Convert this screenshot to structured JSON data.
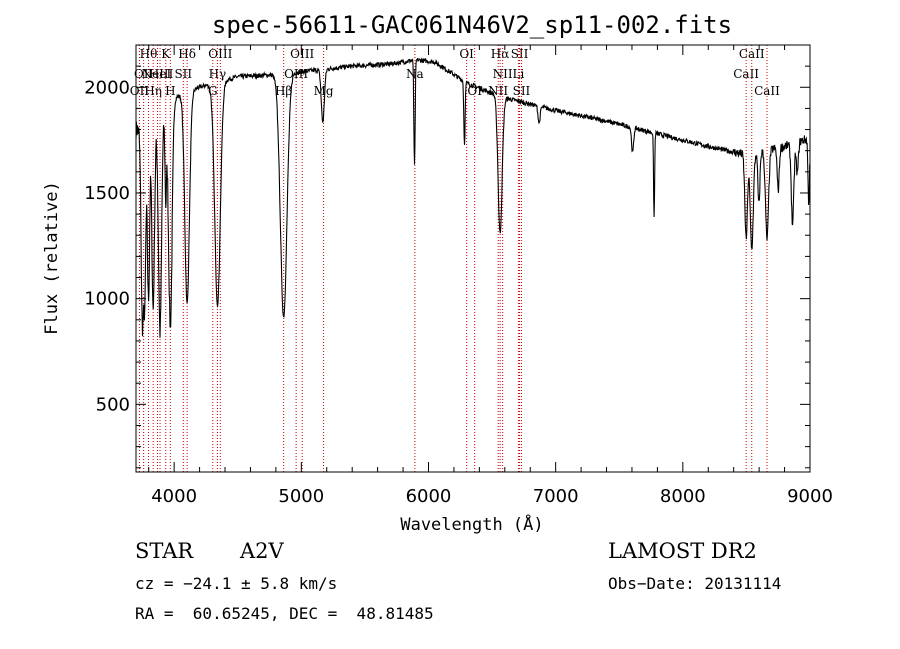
{
  "chart_data": {
    "type": "line",
    "title": "spec-56611-GAC061N46V2_sp11-002.fits",
    "xlabel": "Wavelength (Å)",
    "ylabel": "Flux (relative)",
    "xlim": [
      3700,
      9000
    ],
    "ylim": [
      180,
      2200
    ],
    "xticks": [
      4000,
      5000,
      6000,
      7000,
      8000,
      9000
    ],
    "yticks": [
      500,
      1000,
      1500,
      2000
    ],
    "line_color": "#000000",
    "marker_color": "#cc0000",
    "continuum": {
      "x": [
        3850,
        4000,
        4200,
        4500,
        4800,
        5100,
        5400,
        5700,
        5900,
        6050,
        6300,
        6600,
        6800,
        7000,
        7400,
        7800,
        8200,
        8500,
        8800,
        9000
      ],
      "y": [
        1800,
        1950,
        2000,
        2050,
        2060,
        2080,
        2100,
        2110,
        2130,
        2120,
        2020,
        1950,
        1920,
        1890,
        1840,
        1780,
        1720,
        1680,
        1720,
        1760
      ]
    },
    "absorption_features": [
      {
        "x": 3750,
        "depth": 900,
        "width": 10
      },
      {
        "x": 3770,
        "depth": 700,
        "width": 8
      },
      {
        "x": 3798,
        "depth": 800,
        "width": 9
      },
      {
        "x": 3835,
        "depth": 850,
        "width": 10
      },
      {
        "x": 3889,
        "depth": 1000,
        "width": 12
      },
      {
        "x": 3934,
        "depth": 400,
        "width": 6
      },
      {
        "x": 3970,
        "depth": 1050,
        "width": 14
      },
      {
        "x": 4102,
        "depth": 1000,
        "width": 18
      },
      {
        "x": 4341,
        "depth": 1050,
        "width": 22
      },
      {
        "x": 4861,
        "depth": 1150,
        "width": 26
      },
      {
        "x": 5169,
        "depth": 250,
        "width": 12
      },
      {
        "x": 5890,
        "depth": 500,
        "width": 5
      },
      {
        "x": 6283,
        "depth": 300,
        "width": 5
      },
      {
        "x": 6563,
        "depth": 650,
        "width": 16
      },
      {
        "x": 6870,
        "depth": 80,
        "width": 8
      },
      {
        "x": 7605,
        "depth": 120,
        "width": 8
      },
      {
        "x": 7774,
        "depth": 400,
        "width": 4
      },
      {
        "x": 8498,
        "depth": 400,
        "width": 10
      },
      {
        "x": 8542,
        "depth": 450,
        "width": 12
      },
      {
        "x": 8598,
        "depth": 250,
        "width": 8
      },
      {
        "x": 8662,
        "depth": 420,
        "width": 12
      },
      {
        "x": 8750,
        "depth": 200,
        "width": 8
      },
      {
        "x": 8863,
        "depth": 380,
        "width": 10
      },
      {
        "x": 8900,
        "depth": 150,
        "width": 8
      },
      {
        "x": 8990,
        "depth": 300,
        "width": 6
      }
    ],
    "line_markers": [
      {
        "x": 3727,
        "label": "OII",
        "row": 2
      },
      {
        "x": 3760,
        "label": "OII",
        "row": 1
      },
      {
        "x": 3798,
        "label": "Hθ",
        "row": 0
      },
      {
        "x": 3835,
        "label": "Hη",
        "row": 2
      },
      {
        "x": 3869,
        "label": "NeIII",
        "row": 1
      },
      {
        "x": 3889,
        "label": "HeI",
        "row": 1
      },
      {
        "x": 3934,
        "label": "K",
        "row": 0
      },
      {
        "x": 3970,
        "label": "H",
        "row": 2
      },
      {
        "x": 4072,
        "label": "SII",
        "row": 1
      },
      {
        "x": 4102,
        "label": "Hδ",
        "row": 0
      },
      {
        "x": 4304,
        "label": "G",
        "row": 2
      },
      {
        "x": 4340,
        "label": "Hγ",
        "row": 1
      },
      {
        "x": 4363,
        "label": "OIII",
        "row": 0
      },
      {
        "x": 4861,
        "label": "Hβ",
        "row": 2
      },
      {
        "x": 4959,
        "label": "OIII",
        "row": 1
      },
      {
        "x": 5007,
        "label": "OIII",
        "row": 0
      },
      {
        "x": 5175,
        "label": "Mg",
        "row": 2
      },
      {
        "x": 5893,
        "label": "Na",
        "row": 1
      },
      {
        "x": 6300,
        "label": "OI",
        "row": 0
      },
      {
        "x": 6363,
        "label": "OI",
        "row": 2
      },
      {
        "x": 6548,
        "label": "NII",
        "row": 2
      },
      {
        "x": 6563,
        "label": "Hα",
        "row": 0
      },
      {
        "x": 6583,
        "label": "NII",
        "row": 1
      },
      {
        "x": 6707,
        "label": "Li",
        "row": 1
      },
      {
        "x": 6716,
        "label": "SII",
        "row": 0
      },
      {
        "x": 6731,
        "label": "SII",
        "row": 2
      },
      {
        "x": 8498,
        "label": "CaII",
        "row": 1
      },
      {
        "x": 8542,
        "label": "CaII",
        "row": 0
      },
      {
        "x": 8662,
        "label": "CaII",
        "row": 2
      }
    ]
  },
  "info": {
    "class": "STAR",
    "subclass": "A2V",
    "survey": "LAMOST DR2",
    "cz": "cz = −24.1 ± 5.8 km/s",
    "obsdate": "Obs−Date: 20131114",
    "radec": "RA =  60.65245, DEC =  48.81485"
  }
}
